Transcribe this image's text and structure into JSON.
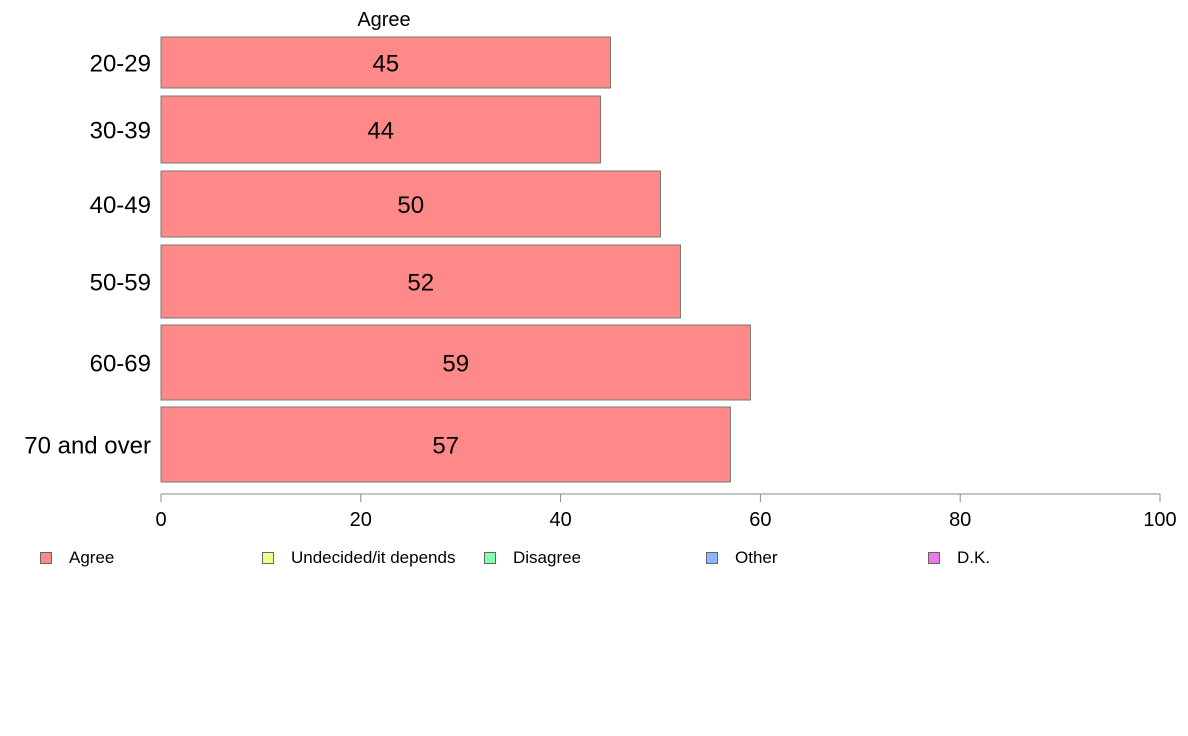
{
  "chart_data": {
    "type": "bar",
    "orientation": "horizontal",
    "series_title": "Agree",
    "categories": [
      "20-29",
      "30-39",
      "40-49",
      "50-59",
      "60-69",
      "70 and over"
    ],
    "series": [
      {
        "name": "Agree",
        "color": "#ff8888",
        "values": [
          45,
          44,
          50,
          52,
          59,
          57
        ]
      }
    ],
    "xlim": [
      0,
      100
    ],
    "xticks": [
      0,
      20,
      40,
      60,
      80,
      100
    ],
    "grid": false,
    "legend_position": "bottom",
    "legend": [
      {
        "label": "Agree",
        "color": "#ff8888"
      },
      {
        "label": "Undecided/it depends",
        "color": "#eeff88"
      },
      {
        "label": "Disagree",
        "color": "#88ffaa"
      },
      {
        "label": "Other",
        "color": "#88b8ff"
      },
      {
        "label": "D.K.",
        "color": "#ee77ee"
      }
    ]
  }
}
